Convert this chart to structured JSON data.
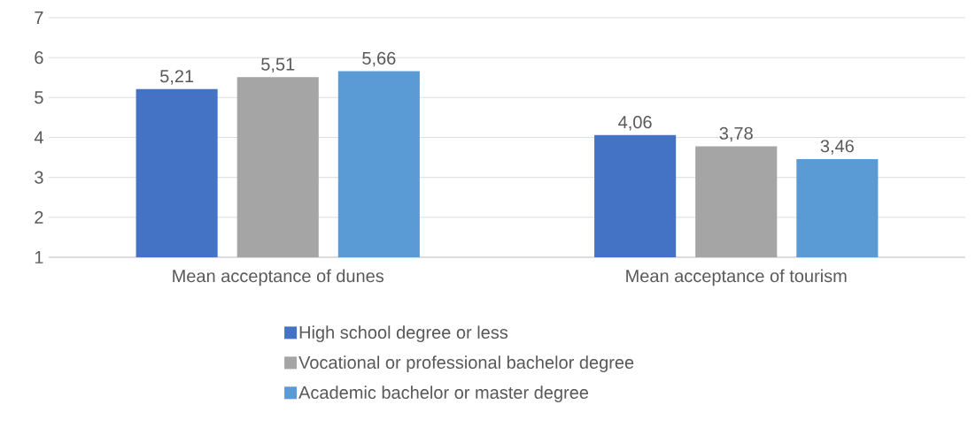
{
  "chart_data": {
    "type": "bar",
    "categories": [
      "Mean acceptance of dunes",
      "Mean acceptance of tourism"
    ],
    "series": [
      {
        "name": "High school degree or less",
        "color": "#4472c4",
        "values": [
          5.21,
          4.06
        ],
        "value_labels": [
          "5,21",
          "4,06"
        ]
      },
      {
        "name": "Vocational or professional bachelor degree",
        "color": "#a5a5a5",
        "values": [
          5.51,
          3.78
        ],
        "value_labels": [
          "5,51",
          "3,78"
        ]
      },
      {
        "name": "Academic bachelor or master degree",
        "color": "#5b9bd5",
        "values": [
          5.66,
          3.46
        ],
        "value_labels": [
          "5,66",
          "3,46"
        ]
      }
    ],
    "ylim": [
      1,
      7
    ],
    "yticks": [
      1,
      2,
      3,
      4,
      5,
      6,
      7
    ],
    "grid": "y",
    "legend": "bottom"
  }
}
